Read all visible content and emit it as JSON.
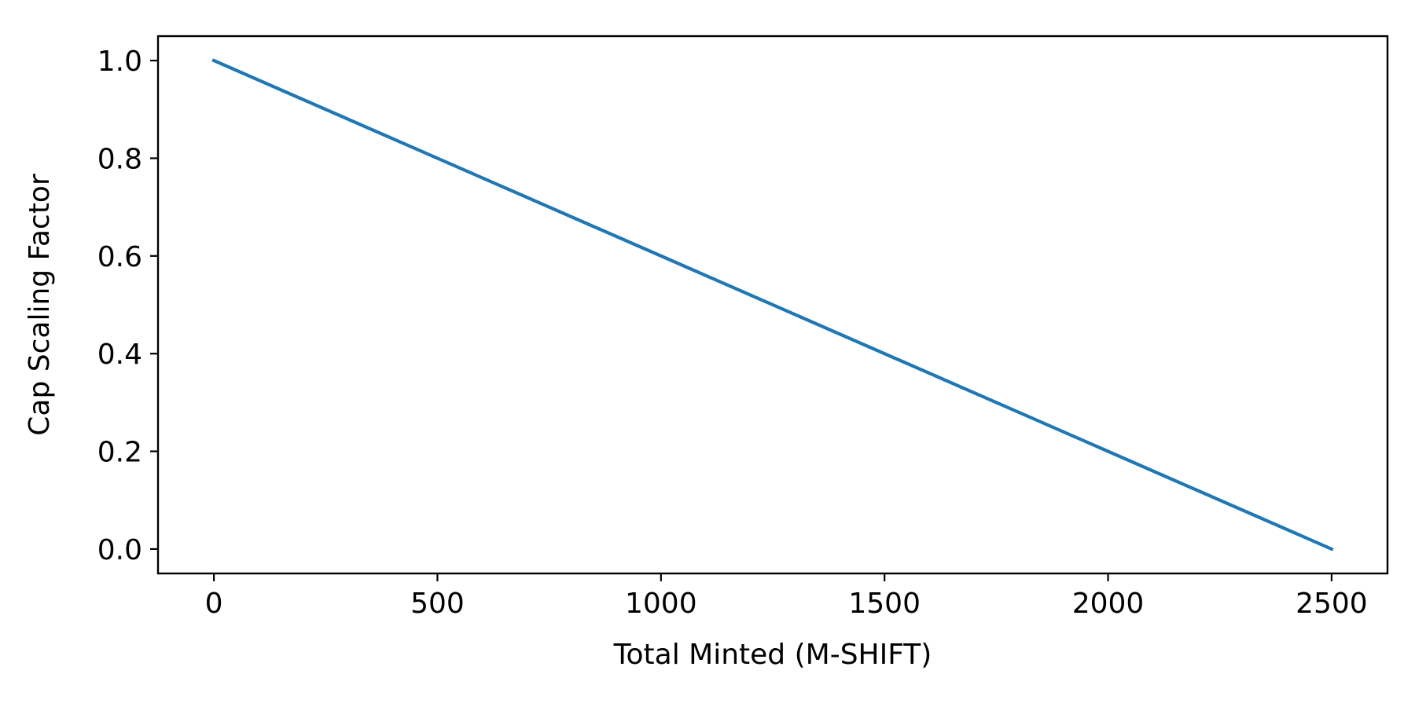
{
  "chart_data": {
    "type": "line",
    "title": "",
    "xlabel": "Total Minted (M-SHIFT)",
    "ylabel": "Cap Scaling Factor",
    "xlim": [
      -125,
      2625
    ],
    "ylim": [
      -0.05,
      1.05
    ],
    "x_ticks": [
      0,
      500,
      1000,
      1500,
      2000,
      2500
    ],
    "x_tick_labels": [
      "0",
      "500",
      "1000",
      "1500",
      "2000",
      "2500"
    ],
    "y_ticks": [
      0.0,
      0.2,
      0.4,
      0.6,
      0.8,
      1.0
    ],
    "y_tick_labels": [
      "0.0",
      "0.2",
      "0.4",
      "0.6",
      "0.8",
      "1.0"
    ],
    "grid": false,
    "legend": "none",
    "series": [
      {
        "color": "#1f77b4",
        "x": [
          0,
          2500
        ],
        "y": [
          1.0,
          0.0
        ]
      }
    ]
  }
}
